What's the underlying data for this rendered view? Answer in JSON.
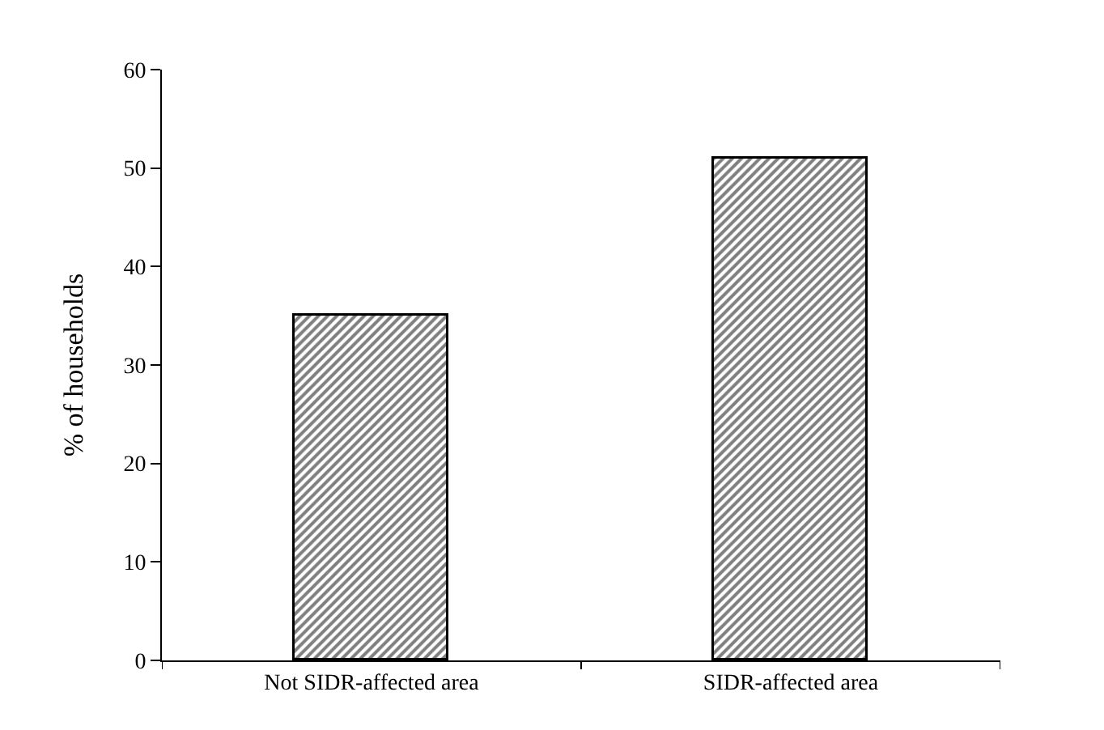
{
  "chart_data": {
    "type": "bar",
    "ylabel": "% of households",
    "categories": [
      "Not SIDR-affected area",
      "SIDR-affected area"
    ],
    "values": [
      35,
      51
    ],
    "color": "#000000",
    "ylim": [
      0,
      60
    ],
    "yticks": [
      0,
      10,
      20,
      30,
      40,
      50,
      60
    ],
    "legend": false
  }
}
